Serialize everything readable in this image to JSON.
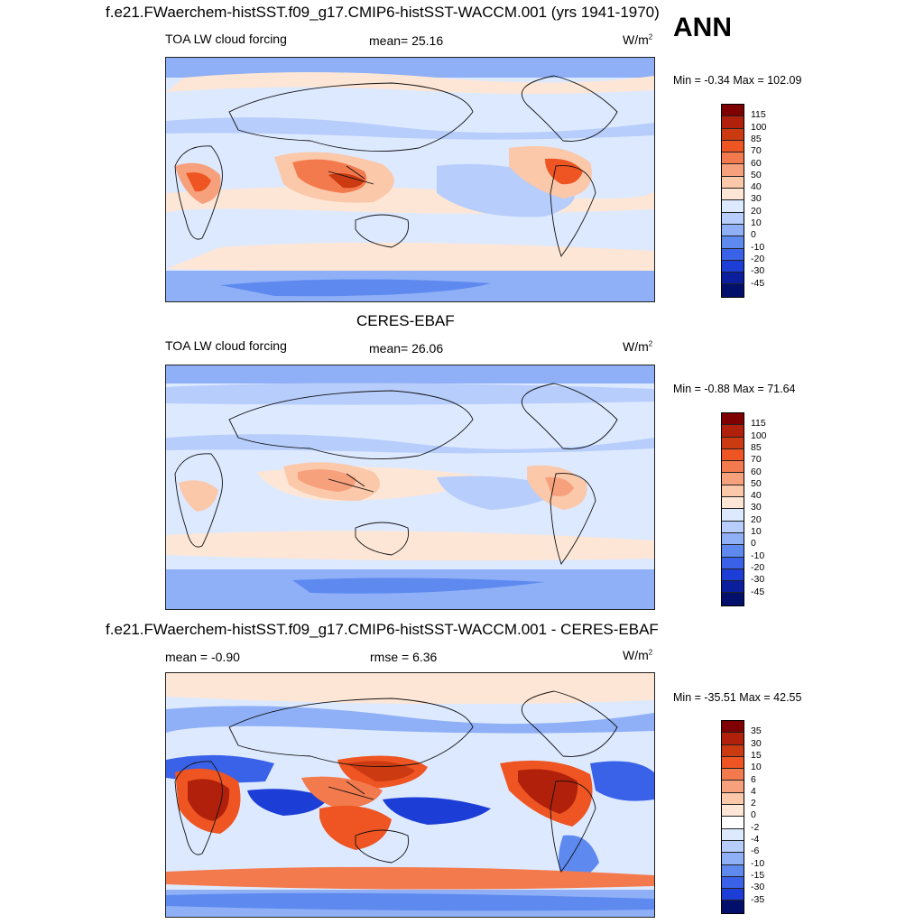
{
  "season": "ANN",
  "panels": [
    {
      "id": "model",
      "header": "f.e21.FWaerchem-histSST.f09_g17.CMIP6-histSST-WACCM.001 (yrs 1941-1970)",
      "left_label": "TOA LW cloud forcing",
      "stat_label": "mean=  25.16",
      "units_base": "W/m",
      "units_exp": "2",
      "minmax": "Min =  -0.34 Max = 102.09",
      "levels": [
        "115",
        "100",
        "85",
        "70",
        "60",
        "50",
        "40",
        "30",
        "20",
        "10",
        "0",
        "-10",
        "-20",
        "-30",
        "-45"
      ]
    },
    {
      "id": "obs",
      "header": "CERES-EBAF",
      "left_label": "TOA LW cloud forcing",
      "stat_label": "mean=  26.06",
      "units_base": "W/m",
      "units_exp": "2",
      "minmax": "Min =  -0.88 Max =  71.64",
      "levels": [
        "115",
        "100",
        "85",
        "70",
        "60",
        "50",
        "40",
        "30",
        "20",
        "10",
        "0",
        "-10",
        "-20",
        "-30",
        "-45"
      ]
    },
    {
      "id": "diff",
      "header": "f.e21.FWaerchem-histSST.f09_g17.CMIP6-histSST-WACCM.001 - CERES-EBAF",
      "left_label": "mean =  -0.90",
      "stat_label": "rmse =   6.36",
      "units_base": "W/m",
      "units_exp": "2",
      "minmax": "Min = -35.51 Max =  42.55",
      "levels": [
        "35",
        "30",
        "15",
        "10",
        "6",
        "4",
        "2",
        "0",
        "-2",
        "-4",
        "-6",
        "-10",
        "-15",
        "-30",
        "-35"
      ]
    }
  ],
  "colors": {
    "abs_scale": [
      "#7f0000",
      "#b0200a",
      "#cc3a12",
      "#ee5522",
      "#f37a4d",
      "#f7a07c",
      "#fbc8aa",
      "#fde6d6",
      "#dde9ff",
      "#b7cdfb",
      "#8fb0f6",
      "#5e8af0",
      "#3a62e8",
      "#1c3dd6",
      "#0b1e9e",
      "#03106b"
    ],
    "diff_scale": [
      "#7f0000",
      "#b0200a",
      "#cc3a12",
      "#ee5522",
      "#f37a4d",
      "#f7a07c",
      "#fbc8aa",
      "#fde6d6",
      "#ffffff",
      "#dde9ff",
      "#b7cdfb",
      "#8fb0f6",
      "#5e8af0",
      "#3a62e8",
      "#1c3dd6",
      "#03106b"
    ]
  }
}
